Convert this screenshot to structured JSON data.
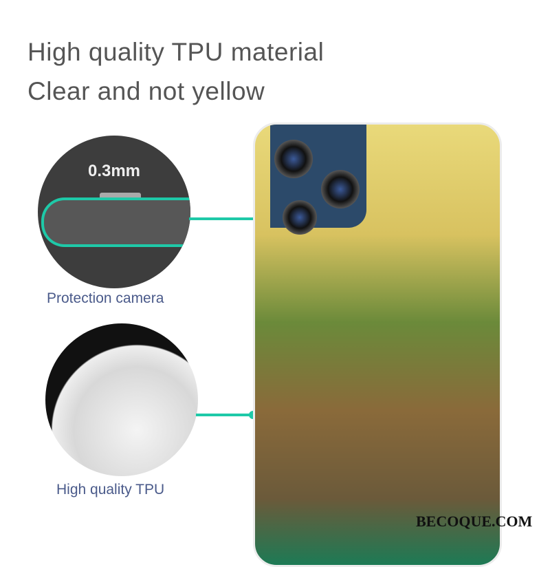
{
  "headline": {
    "line1": "High quality TPU material",
    "line2": "Clear and not yellow"
  },
  "callouts": [
    {
      "value": "0.3mm",
      "label": "Protection camera"
    },
    {
      "label": "High quality TPU"
    }
  ],
  "watermark": "BECOQUE.COM",
  "colors": {
    "accent": "#1ec9a8",
    "text": "#555555",
    "label": "#4a5a8a"
  }
}
